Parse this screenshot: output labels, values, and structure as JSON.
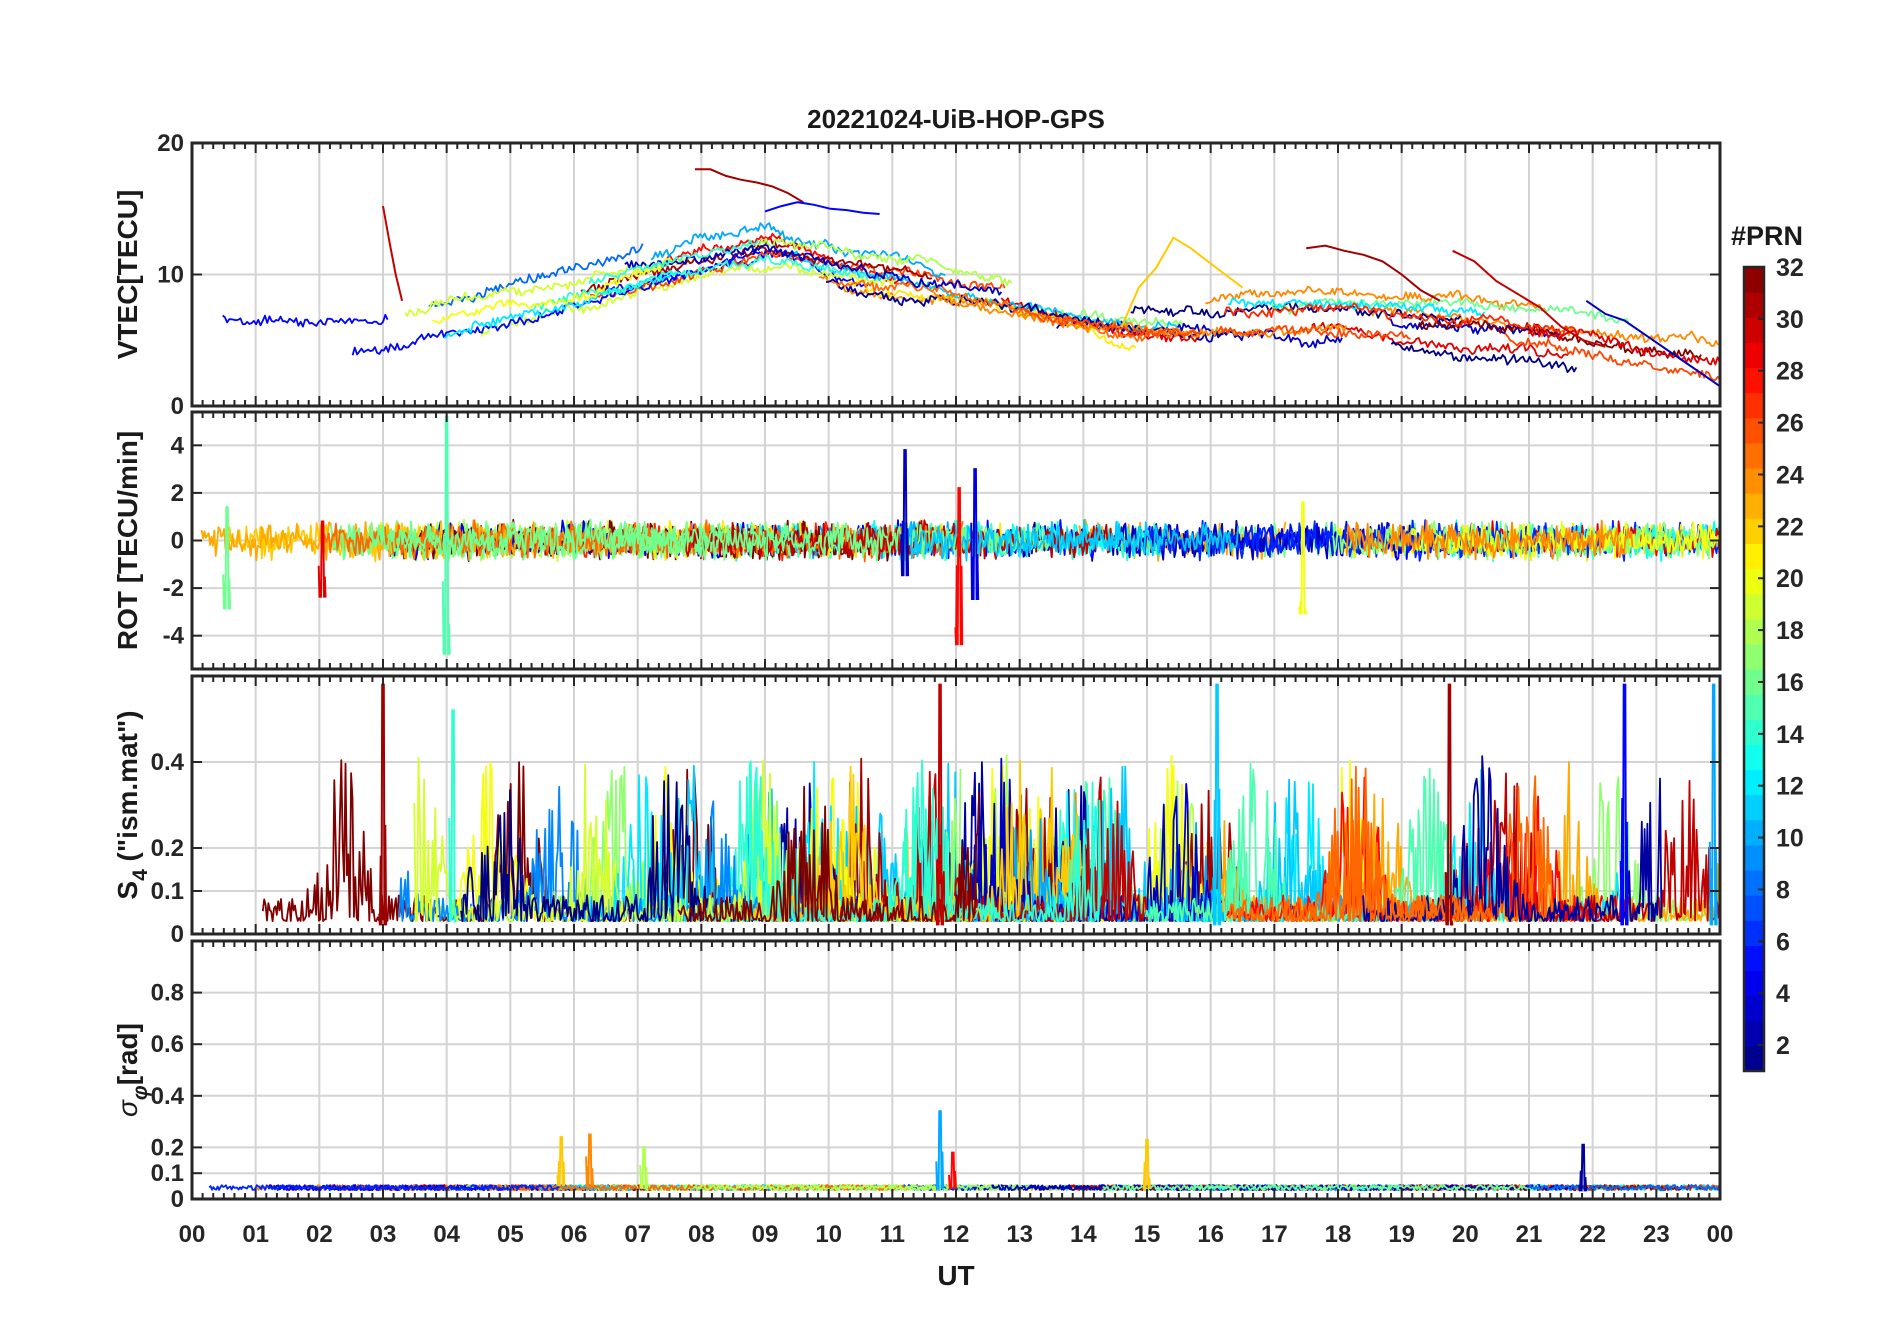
{
  "chart_data": {
    "type": "line",
    "title": "20221024-UiB-HOP-GPS",
    "xlabel": "UT",
    "x_range_hours": [
      0,
      24
    ],
    "x_tick_labels": [
      "00",
      "01",
      "02",
      "03",
      "04",
      "05",
      "06",
      "07",
      "08",
      "09",
      "10",
      "11",
      "12",
      "13",
      "14",
      "15",
      "16",
      "17",
      "18",
      "19",
      "20",
      "21",
      "22",
      "23",
      "00"
    ],
    "colorbar": {
      "title": "#PRN",
      "range": [
        1,
        32
      ],
      "tick_labels": [
        "2",
        "4",
        "6",
        "8",
        "10",
        "12",
        "14",
        "16",
        "18",
        "20",
        "22",
        "24",
        "26",
        "28",
        "30",
        "32"
      ],
      "tick_values": [
        2,
        4,
        6,
        8,
        10,
        12,
        14,
        16,
        18,
        20,
        22,
        24,
        26,
        28,
        30,
        32
      ]
    },
    "panels": [
      {
        "id": "vtec",
        "ylabel": "VTEC[TECU]",
        "ylim": [
          0,
          20
        ],
        "y_ticks": [
          0,
          10,
          20
        ],
        "y_tick_labels": [
          "0",
          "10",
          "20"
        ],
        "signal": {
          "kind": "smooth",
          "base": [
            [
              0,
              5.5
            ],
            [
              3,
              5.5
            ],
            [
              6,
              8.5
            ],
            [
              9,
              12
            ],
            [
              12,
              9
            ],
            [
              15,
              6.5
            ],
            [
              18,
              6.5
            ],
            [
              21,
              5
            ],
            [
              24,
              3
            ]
          ],
          "spread": 3.2
        },
        "series_segments": [
          {
            "prn": 31,
            "start": 7.9,
            "end": 9.6,
            "values": [
              18,
              18,
              17.5,
              17.2,
              17,
              16.7,
              16.2,
              15.5
            ]
          },
          {
            "prn": 30,
            "start": 3.0,
            "end": 3.3,
            "values": [
              15.2,
              12.5,
              10,
              8
            ]
          },
          {
            "prn": 5,
            "start": 9.0,
            "end": 10.8,
            "values": [
              14.8,
              15.2,
              15.5,
              15.3,
              15,
              14.9,
              14.7,
              14.6
            ]
          },
          {
            "prn": 22,
            "start": 14.6,
            "end": 16.5,
            "values": [
              6,
              9,
              10.5,
              12.8,
              12,
              11,
              10,
              9
            ]
          },
          {
            "prn": 31,
            "start": 17.5,
            "end": 19.6,
            "values": [
              12,
              12.2,
              11.8,
              11.5,
              11,
              10,
              8.8,
              8
            ]
          },
          {
            "prn": 30,
            "start": 19.8,
            "end": 22.2,
            "values": [
              11.8,
              11,
              9.5,
              8.5,
              7.5,
              6,
              5,
              4.5
            ]
          },
          {
            "prn": 3,
            "start": 21.9,
            "end": 24.0,
            "values": [
              8,
              7,
              6.5,
              5.5,
              4.5,
              3.5,
              2.5,
              1.5
            ]
          }
        ]
      },
      {
        "id": "rot",
        "ylabel": "ROT [TECU/min]",
        "ylim": [
          -5.4,
          5.4
        ],
        "y_ticks": [
          -4,
          -2,
          0,
          2,
          4
        ],
        "y_tick_labels": [
          "-4",
          "-2",
          "0",
          "2",
          "4"
        ],
        "signal": {
          "kind": "noise",
          "baseline": 0,
          "amplitude": 0.6
        },
        "spikes": [
          {
            "t": 4.0,
            "prn": 15,
            "min": -4.8,
            "max": 5.2
          },
          {
            "t": 11.2,
            "prn": 3,
            "min": -1.5,
            "max": 3.8
          },
          {
            "t": 12.05,
            "prn": 28,
            "min": -4.4,
            "max": 2.2
          },
          {
            "t": 12.3,
            "prn": 4,
            "min": -2.5,
            "max": 3.0
          },
          {
            "t": 17.45,
            "prn": 20,
            "min": -3.1,
            "max": 1.6
          },
          {
            "t": 0.55,
            "prn": 16,
            "min": -2.9,
            "max": 1.4
          },
          {
            "t": 2.05,
            "prn": 29,
            "min": -2.4,
            "max": 0.8
          }
        ]
      },
      {
        "id": "s4",
        "ylabel": "S4 (\"ism.mat\")",
        "ylabel_main": "S",
        "ylabel_sub": "4",
        "ylabel_rest": " (\"ism.mat\")",
        "ylim": [
          0,
          0.6
        ],
        "y_ticks": [
          0,
          0.1,
          0.2,
          0.4
        ],
        "y_tick_labels": [
          "0",
          "0.1",
          "0.2",
          "0.4"
        ],
        "signal": {
          "kind": "burst",
          "baseline": 0.03,
          "amplitude": 0.15
        },
        "spikes": [
          {
            "t": 3.0,
            "prn": 31,
            "min": 0.02,
            "max": 0.58
          },
          {
            "t": 11.75,
            "prn": 30,
            "min": 0.02,
            "max": 0.58
          },
          {
            "t": 16.1,
            "prn": 11,
            "min": 0.02,
            "max": 0.58
          },
          {
            "t": 19.75,
            "prn": 31,
            "min": 0.02,
            "max": 0.58
          },
          {
            "t": 22.5,
            "prn": 5,
            "min": 0.02,
            "max": 0.58
          },
          {
            "t": 23.9,
            "prn": 10,
            "min": 0.02,
            "max": 0.58
          },
          {
            "t": 4.1,
            "prn": 14,
            "min": 0.03,
            "max": 0.52
          }
        ]
      },
      {
        "id": "sigma_phi",
        "ylabel": "σφ[rad]",
        "ylabel_main": "σ",
        "ylabel_sub": "φ",
        "ylabel_rest": "[rad]",
        "ylim": [
          0,
          1.0
        ],
        "y_ticks": [
          0,
          0.1,
          0.2,
          0.4,
          0.6,
          0.8
        ],
        "y_tick_labels": [
          "0",
          "0.1",
          "0.2",
          "0.4",
          "0.6",
          "0.8"
        ],
        "signal": {
          "kind": "flat",
          "baseline": 0.04,
          "amplitude": 0.02
        },
        "spikes": [
          {
            "t": 5.8,
            "prn": 22,
            "min": 0.05,
            "max": 0.24
          },
          {
            "t": 6.25,
            "prn": 24,
            "min": 0.05,
            "max": 0.25
          },
          {
            "t": 11.75,
            "prn": 10,
            "min": 0.04,
            "max": 0.34
          },
          {
            "t": 11.95,
            "prn": 28,
            "min": 0.04,
            "max": 0.18
          },
          {
            "t": 15.0,
            "prn": 22,
            "min": 0.04,
            "max": 0.23
          },
          {
            "t": 21.85,
            "prn": 2,
            "min": 0.03,
            "max": 0.21
          },
          {
            "t": 7.1,
            "prn": 18,
            "min": 0.04,
            "max": 0.2
          }
        ]
      }
    ]
  }
}
